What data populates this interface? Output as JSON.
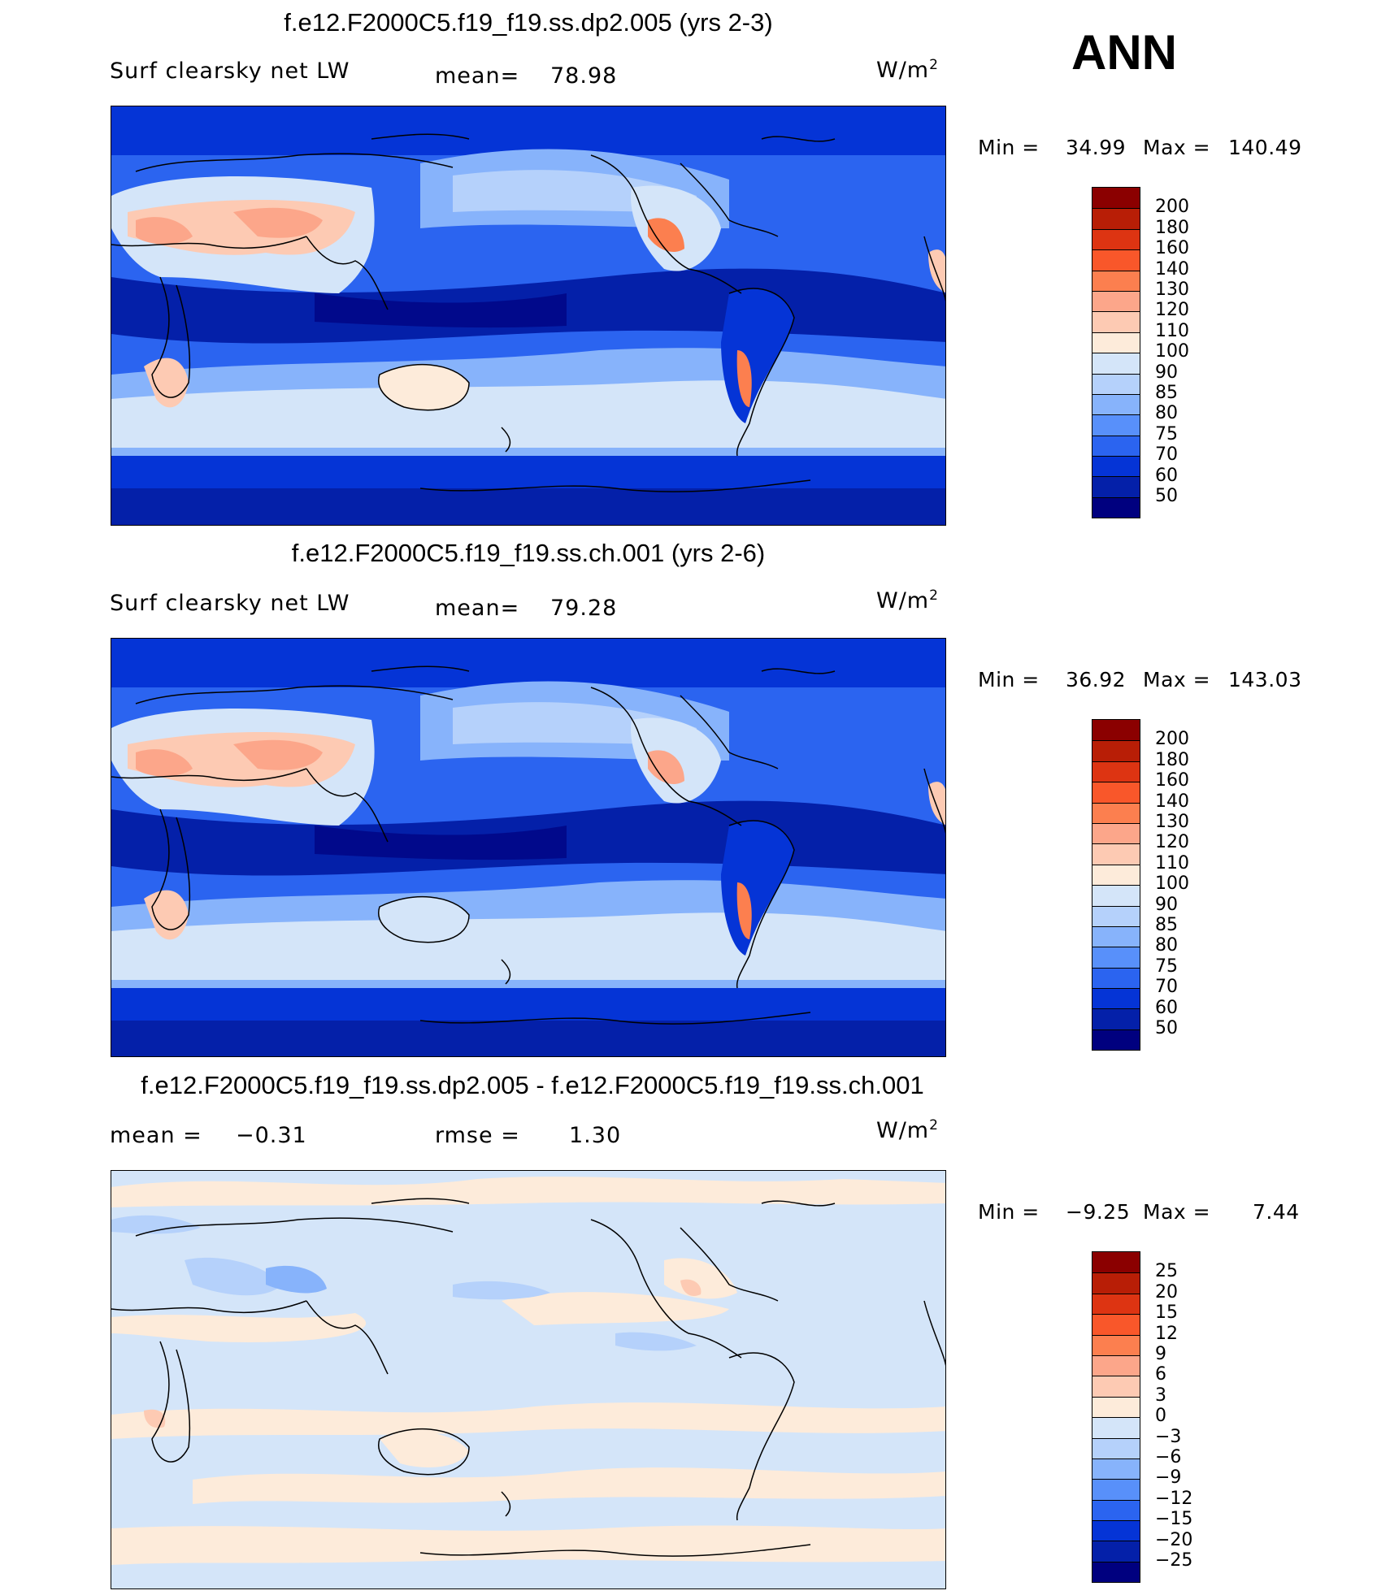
{
  "season": "ANN",
  "unit_base": "W/m",
  "unit_exp": "2",
  "panels": [
    {
      "title": "f.e12.F2000C5.f19_f19.ss.dp2.005 (yrs 2-3)",
      "field": "Surf clearsky net LW",
      "stat1_label": "mean=",
      "stat1_value": "78.98",
      "min_text": "Min =",
      "min_value": "34.99",
      "max_text": "Max =",
      "max_value": "140.49"
    },
    {
      "title": "f.e12.F2000C5.f19_f19.ss.ch.001 (yrs 2-6)",
      "field": "Surf clearsky net LW",
      "stat1_label": "mean=",
      "stat1_value": "79.28",
      "min_text": "Min =",
      "min_value": "36.92",
      "max_text": "Max =",
      "max_value": "143.03"
    },
    {
      "title": "f.e12.F2000C5.f19_f19.ss.dp2.005 - f.e12.F2000C5.f19_f19.ss.ch.001",
      "stat1_label": "mean =",
      "stat1_value": "−0.31",
      "stat2_label": "rmse =",
      "stat2_value": "1.30",
      "min_text": "Min =",
      "min_value": "−9.25",
      "max_text": "Max =",
      "max_value": "7.44"
    }
  ],
  "colorbars": {
    "absolute": {
      "labels": [
        "200",
        "180",
        "160",
        "140",
        "130",
        "120",
        "110",
        "100",
        "90",
        "85",
        "80",
        "75",
        "70",
        "60",
        "50"
      ],
      "colors": [
        "#8b0000",
        "#b81e06",
        "#dd3412",
        "#f9572a",
        "#fc7f4f",
        "#fca68a",
        "#fdcab3",
        "#fdebda",
        "#d4e5f9",
        "#b5d1fb",
        "#87b3fb",
        "#5890fa",
        "#2b64f0",
        "#0534d6",
        "#0420a9",
        "#00007f"
      ]
    },
    "difference": {
      "labels": [
        "25",
        "20",
        "15",
        "12",
        "9",
        "6",
        "3",
        "0",
        "−3",
        "−6",
        "−9",
        "−12",
        "−15",
        "−20",
        "−25"
      ],
      "colors": [
        "#8b0000",
        "#b81e06",
        "#dd3412",
        "#f9572a",
        "#fc7f4f",
        "#fca68a",
        "#fdcab3",
        "#fdebda",
        "#d4e5f9",
        "#b5d1fb",
        "#87b3fb",
        "#5890fa",
        "#2b64f0",
        "#0534d6",
        "#0420a9",
        "#00007f"
      ]
    }
  },
  "chart_data": [
    {
      "type": "heatmap",
      "title": "f.e12.F2000C5.f19_f19.ss.dp2.005 (yrs 2-3)",
      "variable": "Surf clearsky net LW",
      "units": "W/m2",
      "mean": 78.98,
      "min": 34.99,
      "max": 140.49,
      "contour_levels": [
        50,
        60,
        70,
        75,
        80,
        85,
        90,
        100,
        110,
        120,
        130,
        140,
        160,
        180,
        200
      ]
    },
    {
      "type": "heatmap",
      "title": "f.e12.F2000C5.f19_f19.ss.ch.001 (yrs 2-6)",
      "variable": "Surf clearsky net LW",
      "units": "W/m2",
      "mean": 79.28,
      "min": 36.92,
      "max": 143.03,
      "contour_levels": [
        50,
        60,
        70,
        75,
        80,
        85,
        90,
        100,
        110,
        120,
        130,
        140,
        160,
        180,
        200
      ]
    },
    {
      "type": "heatmap",
      "title": "f.e12.F2000C5.f19_f19.ss.dp2.005 - f.e12.F2000C5.f19_f19.ss.ch.001",
      "units": "W/m2",
      "mean": -0.31,
      "rmse": 1.3,
      "min": -9.25,
      "max": 7.44,
      "contour_levels": [
        -25,
        -20,
        -15,
        -12,
        -9,
        -6,
        -3,
        0,
        3,
        6,
        9,
        12,
        15,
        20,
        25
      ]
    }
  ]
}
